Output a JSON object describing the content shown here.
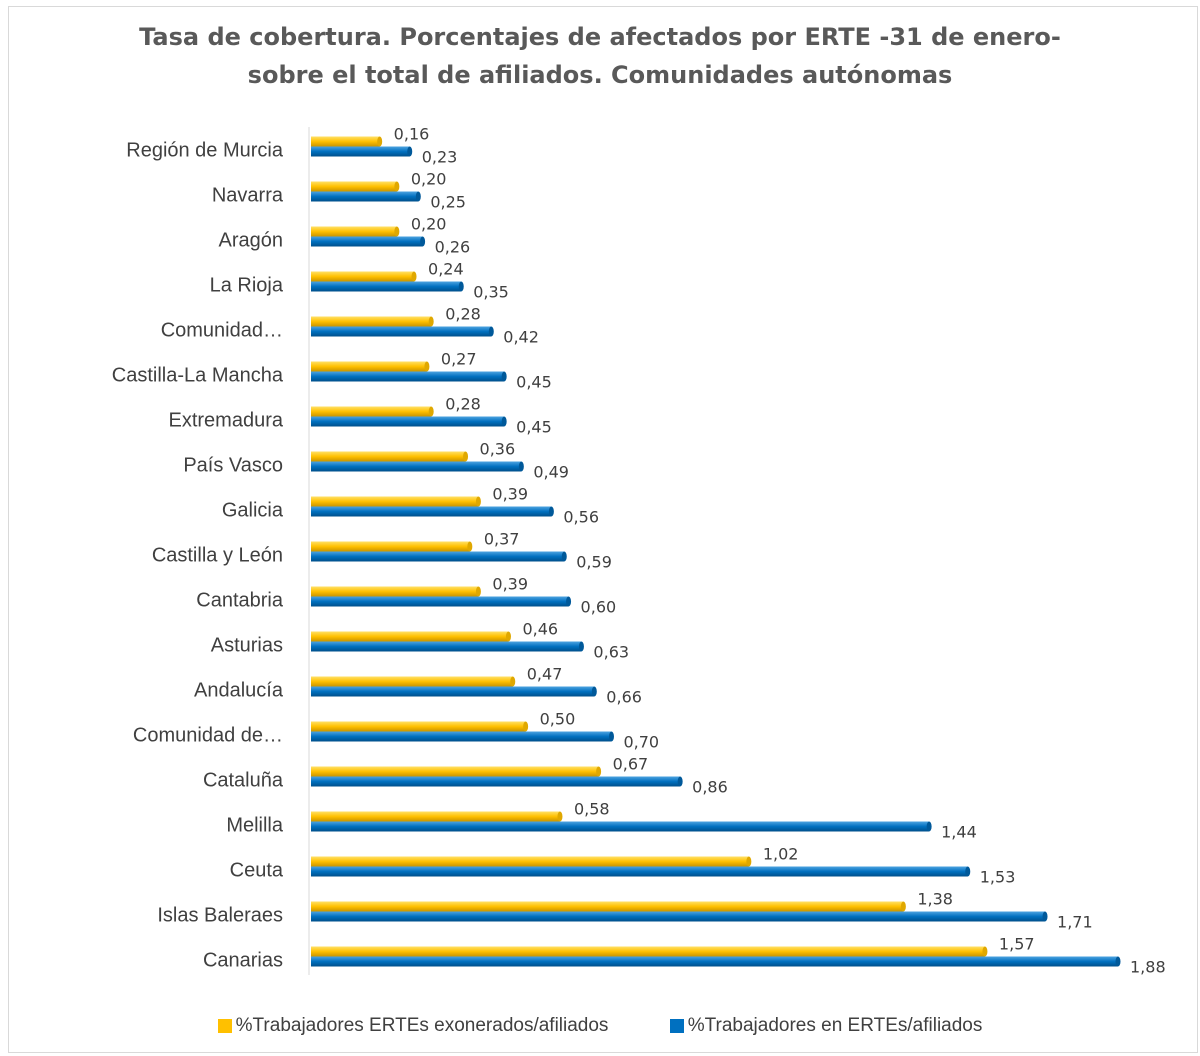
{
  "chart_data": {
    "type": "bar",
    "orientation": "horizontal",
    "title_lines": [
      "Tasa de cobertura. Porcentajes de afectados por ERTE -31 de enero-",
      "sobre el total de afiliados. Comunidades autónomas"
    ],
    "categories": [
      "Región de Murcia",
      "Navarra",
      "Aragón",
      "La Rioja",
      "Comunidad…",
      "Castilla-La Mancha",
      "Extremadura",
      "País Vasco",
      "Galicia",
      "Castilla y León",
      "Cantabria",
      "Asturias",
      "Andalucía",
      "Comunidad de…",
      "Cataluña",
      "Melilla",
      "Ceuta",
      "Islas Baleraes",
      "Canarias"
    ],
    "series": [
      {
        "name": "%Trabajadores ERTEs exonerados/afiliados",
        "color": "#FFC000",
        "values": [
          0.16,
          0.2,
          0.2,
          0.24,
          0.28,
          0.27,
          0.28,
          0.36,
          0.39,
          0.37,
          0.39,
          0.46,
          0.47,
          0.5,
          0.67,
          0.58,
          1.02,
          1.38,
          1.57
        ],
        "labels": [
          "0,16",
          "0,20",
          "0,20",
          "0,24",
          "0,28",
          "0,27",
          "0,28",
          "0,36",
          "0,39",
          "0,37",
          "0,39",
          "0,46",
          "0,47",
          "0,50",
          "0,67",
          "0,58",
          "1,02",
          "1,38",
          "1,57"
        ]
      },
      {
        "name": "%Trabajadores en ERTEs/afiliados",
        "color": "#0070C0",
        "values": [
          0.23,
          0.25,
          0.26,
          0.35,
          0.42,
          0.45,
          0.45,
          0.49,
          0.56,
          0.59,
          0.6,
          0.63,
          0.66,
          0.7,
          0.86,
          1.44,
          1.53,
          1.71,
          1.88
        ],
        "labels": [
          "0,23",
          "0,25",
          "0,26",
          "0,35",
          "0,42",
          "0,45",
          "0,45",
          "0,49",
          "0,56",
          "0,59",
          "0,60",
          "0,63",
          "0,66",
          "0,70",
          "0,86",
          "1,44",
          "1,53",
          "1,71",
          "1,88"
        ]
      }
    ],
    "xlim": [
      0,
      1.88
    ],
    "grid": false,
    "legend_position": "bottom"
  }
}
